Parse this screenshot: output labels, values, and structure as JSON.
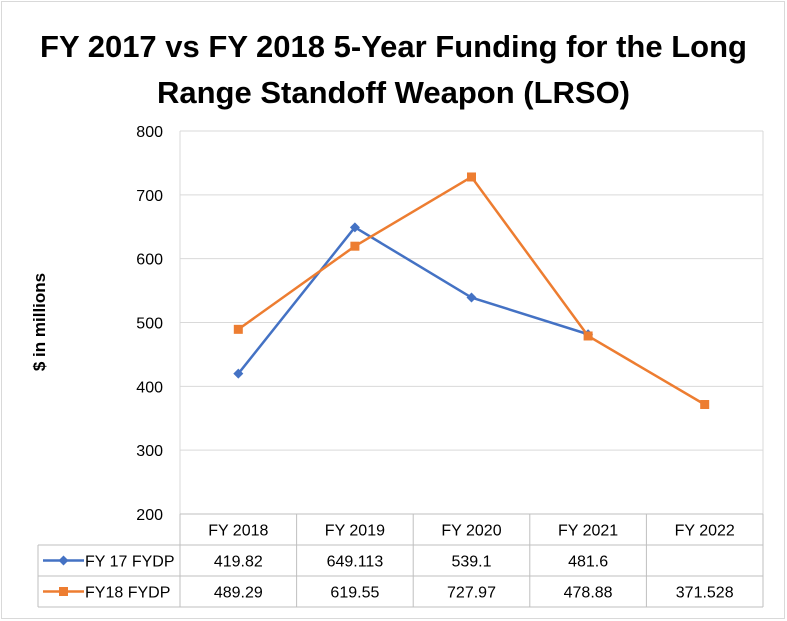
{
  "chart_data": {
    "type": "line",
    "title": "FY 2017 vs FY 2018 5-Year Funding for the Long Range Standoff Weapon (LRSO)",
    "ylabel": "$ in millions",
    "xlabel": "",
    "ylim": [
      200,
      800
    ],
    "yticks": [
      200,
      300,
      400,
      500,
      600,
      700,
      800
    ],
    "categories": [
      "FY 2018",
      "FY 2019",
      "FY 2020",
      "FY 2021",
      "FY 2022"
    ],
    "grid": true,
    "legend": "data-table",
    "series": [
      {
        "name": "FY 17 FYDP",
        "color": "#4472c4",
        "marker": "diamond",
        "values": [
          419.82,
          649.113,
          539.1,
          481.6,
          null
        ],
        "labels": [
          "419.82",
          "649.113",
          "539.1",
          "481.6",
          ""
        ]
      },
      {
        "name": "FY18 FYDP",
        "color": "#ed7d31",
        "marker": "square",
        "values": [
          489.29,
          619.55,
          727.97,
          478.88,
          371.528
        ],
        "labels": [
          "489.29",
          "619.55",
          "727.97",
          "478.88",
          "371.528"
        ]
      }
    ]
  }
}
